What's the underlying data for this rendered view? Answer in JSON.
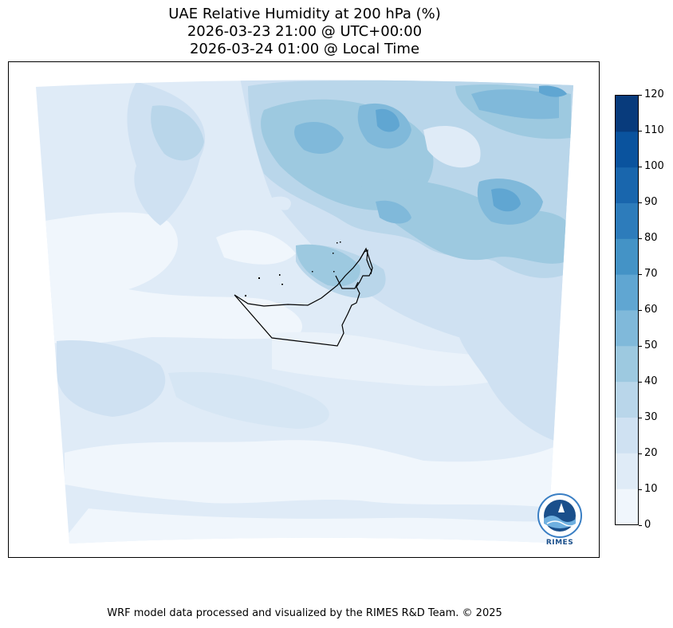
{
  "title": {
    "line1": "UAE Relative Humidity at 200 hPa (%)",
    "line2": "2026-03-23 21:00 @ UTC+00:00",
    "line3": "2026-03-24 01:00 @ Local Time"
  },
  "colorbar": {
    "levels": [
      0,
      10,
      20,
      30,
      40,
      50,
      60,
      70,
      80,
      90,
      100,
      110,
      120
    ],
    "tick_labels": [
      "0",
      "10",
      "20",
      "30",
      "40",
      "50",
      "60",
      "70",
      "80",
      "90",
      "100",
      "110",
      "120"
    ],
    "colors": [
      "#f0f6fc",
      "#dfebf7",
      "#cfe1f2",
      "#b9d6ea",
      "#9dc9e0",
      "#80b9da",
      "#60a6d2",
      "#4493c6",
      "#2d7cbb",
      "#1966ad",
      "#0a539e",
      "#083b7c"
    ]
  },
  "map": {
    "region": "UAE",
    "background_level": 10,
    "country_outline_color": "#000000"
  },
  "logo": {
    "text": "RIMES",
    "icon": "rimes-logo-icon"
  },
  "footer": {
    "credit": "WRF model data processed and visualized by the RIMES R&D Team. © 2025"
  }
}
